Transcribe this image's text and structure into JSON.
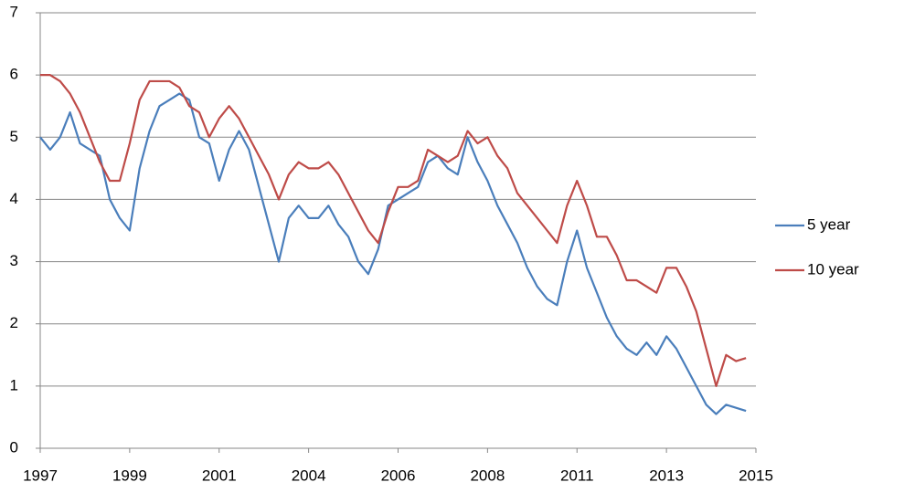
{
  "chart_data": {
    "type": "line",
    "x": [
      1997,
      1997.25,
      1997.5,
      1997.75,
      1998,
      1998.25,
      1998.5,
      1998.75,
      1999,
      1999.25,
      1999.5,
      1999.75,
      2000,
      2000.25,
      2000.5,
      2000.75,
      2001,
      2001.25,
      2001.5,
      2001.75,
      2002,
      2002.25,
      2002.5,
      2002.75,
      2003,
      2003.25,
      2003.5,
      2003.75,
      2004,
      2004.25,
      2004.5,
      2004.75,
      2005,
      2005.25,
      2005.5,
      2005.75,
      2006,
      2006.25,
      2006.5,
      2006.75,
      2007,
      2007.25,
      2007.5,
      2007.75,
      2008,
      2008.25,
      2008.5,
      2008.75,
      2009,
      2009.25,
      2009.5,
      2009.75,
      2010,
      2010.25,
      2010.5,
      2010.75,
      2011,
      2011.25,
      2011.5,
      2011.75,
      2012,
      2012.25,
      2012.5,
      2012.75,
      2013,
      2013.25,
      2013.5,
      2013.75,
      2014,
      2014.25,
      2014.5,
      2014.75
    ],
    "series": [
      {
        "name": "5 year",
        "color": "#4a7ebb",
        "values": [
          5.0,
          4.8,
          5.0,
          5.4,
          4.9,
          4.8,
          4.7,
          4.0,
          3.7,
          3.5,
          4.5,
          5.1,
          5.5,
          5.6,
          5.7,
          5.6,
          5.0,
          4.9,
          4.3,
          4.8,
          5.1,
          4.8,
          4.2,
          3.6,
          3.0,
          3.7,
          3.9,
          3.7,
          3.7,
          3.9,
          3.6,
          3.4,
          3.0,
          2.8,
          3.2,
          3.9,
          4.0,
          4.1,
          4.2,
          4.6,
          4.7,
          4.5,
          4.4,
          5.0,
          4.6,
          4.3,
          3.9,
          3.6,
          3.3,
          2.9,
          2.6,
          2.4,
          2.3,
          3.0,
          3.5,
          2.9,
          2.5,
          2.1,
          1.8,
          1.6,
          1.5,
          1.7,
          1.5,
          1.8,
          1.6,
          1.3,
          1.0,
          0.7,
          0.55,
          0.7,
          0.65,
          0.6
        ]
      },
      {
        "name": "10 year",
        "color": "#be4b48",
        "values": [
          6.0,
          6.0,
          5.9,
          5.7,
          5.4,
          5.0,
          4.6,
          4.3,
          4.3,
          4.9,
          5.6,
          5.9,
          5.9,
          5.9,
          5.8,
          5.5,
          5.4,
          5.0,
          5.3,
          5.5,
          5.3,
          5.0,
          4.7,
          4.4,
          4.0,
          4.4,
          4.6,
          4.5,
          4.5,
          4.6,
          4.4,
          4.1,
          3.8,
          3.5,
          3.3,
          3.8,
          4.2,
          4.2,
          4.3,
          4.8,
          4.7,
          4.6,
          4.7,
          5.1,
          4.9,
          5.0,
          4.7,
          4.5,
          4.1,
          3.9,
          3.7,
          3.5,
          3.3,
          3.9,
          4.3,
          3.9,
          3.4,
          3.4,
          3.1,
          2.7,
          2.7,
          2.6,
          2.5,
          2.9,
          2.9,
          2.6,
          2.2,
          1.6,
          1.0,
          1.5,
          1.4,
          1.45
        ]
      }
    ],
    "xlim": [
      1997,
      2015
    ],
    "xticks": [
      {
        "value": 1997,
        "label": "1997"
      },
      {
        "value": 1999.25,
        "label": "1999"
      },
      {
        "value": 2001.5,
        "label": "2001"
      },
      {
        "value": 2003.75,
        "label": "2004"
      },
      {
        "value": 2006,
        "label": "2006"
      },
      {
        "value": 2008.25,
        "label": "2008"
      },
      {
        "value": 2010.5,
        "label": "2011"
      },
      {
        "value": 2012.75,
        "label": "2013"
      },
      {
        "value": 2015,
        "label": "2015"
      }
    ],
    "ylim": [
      0,
      7
    ],
    "yticks": [
      0,
      1,
      2,
      3,
      4,
      5,
      6,
      7
    ],
    "grid": true,
    "legend": "right"
  }
}
